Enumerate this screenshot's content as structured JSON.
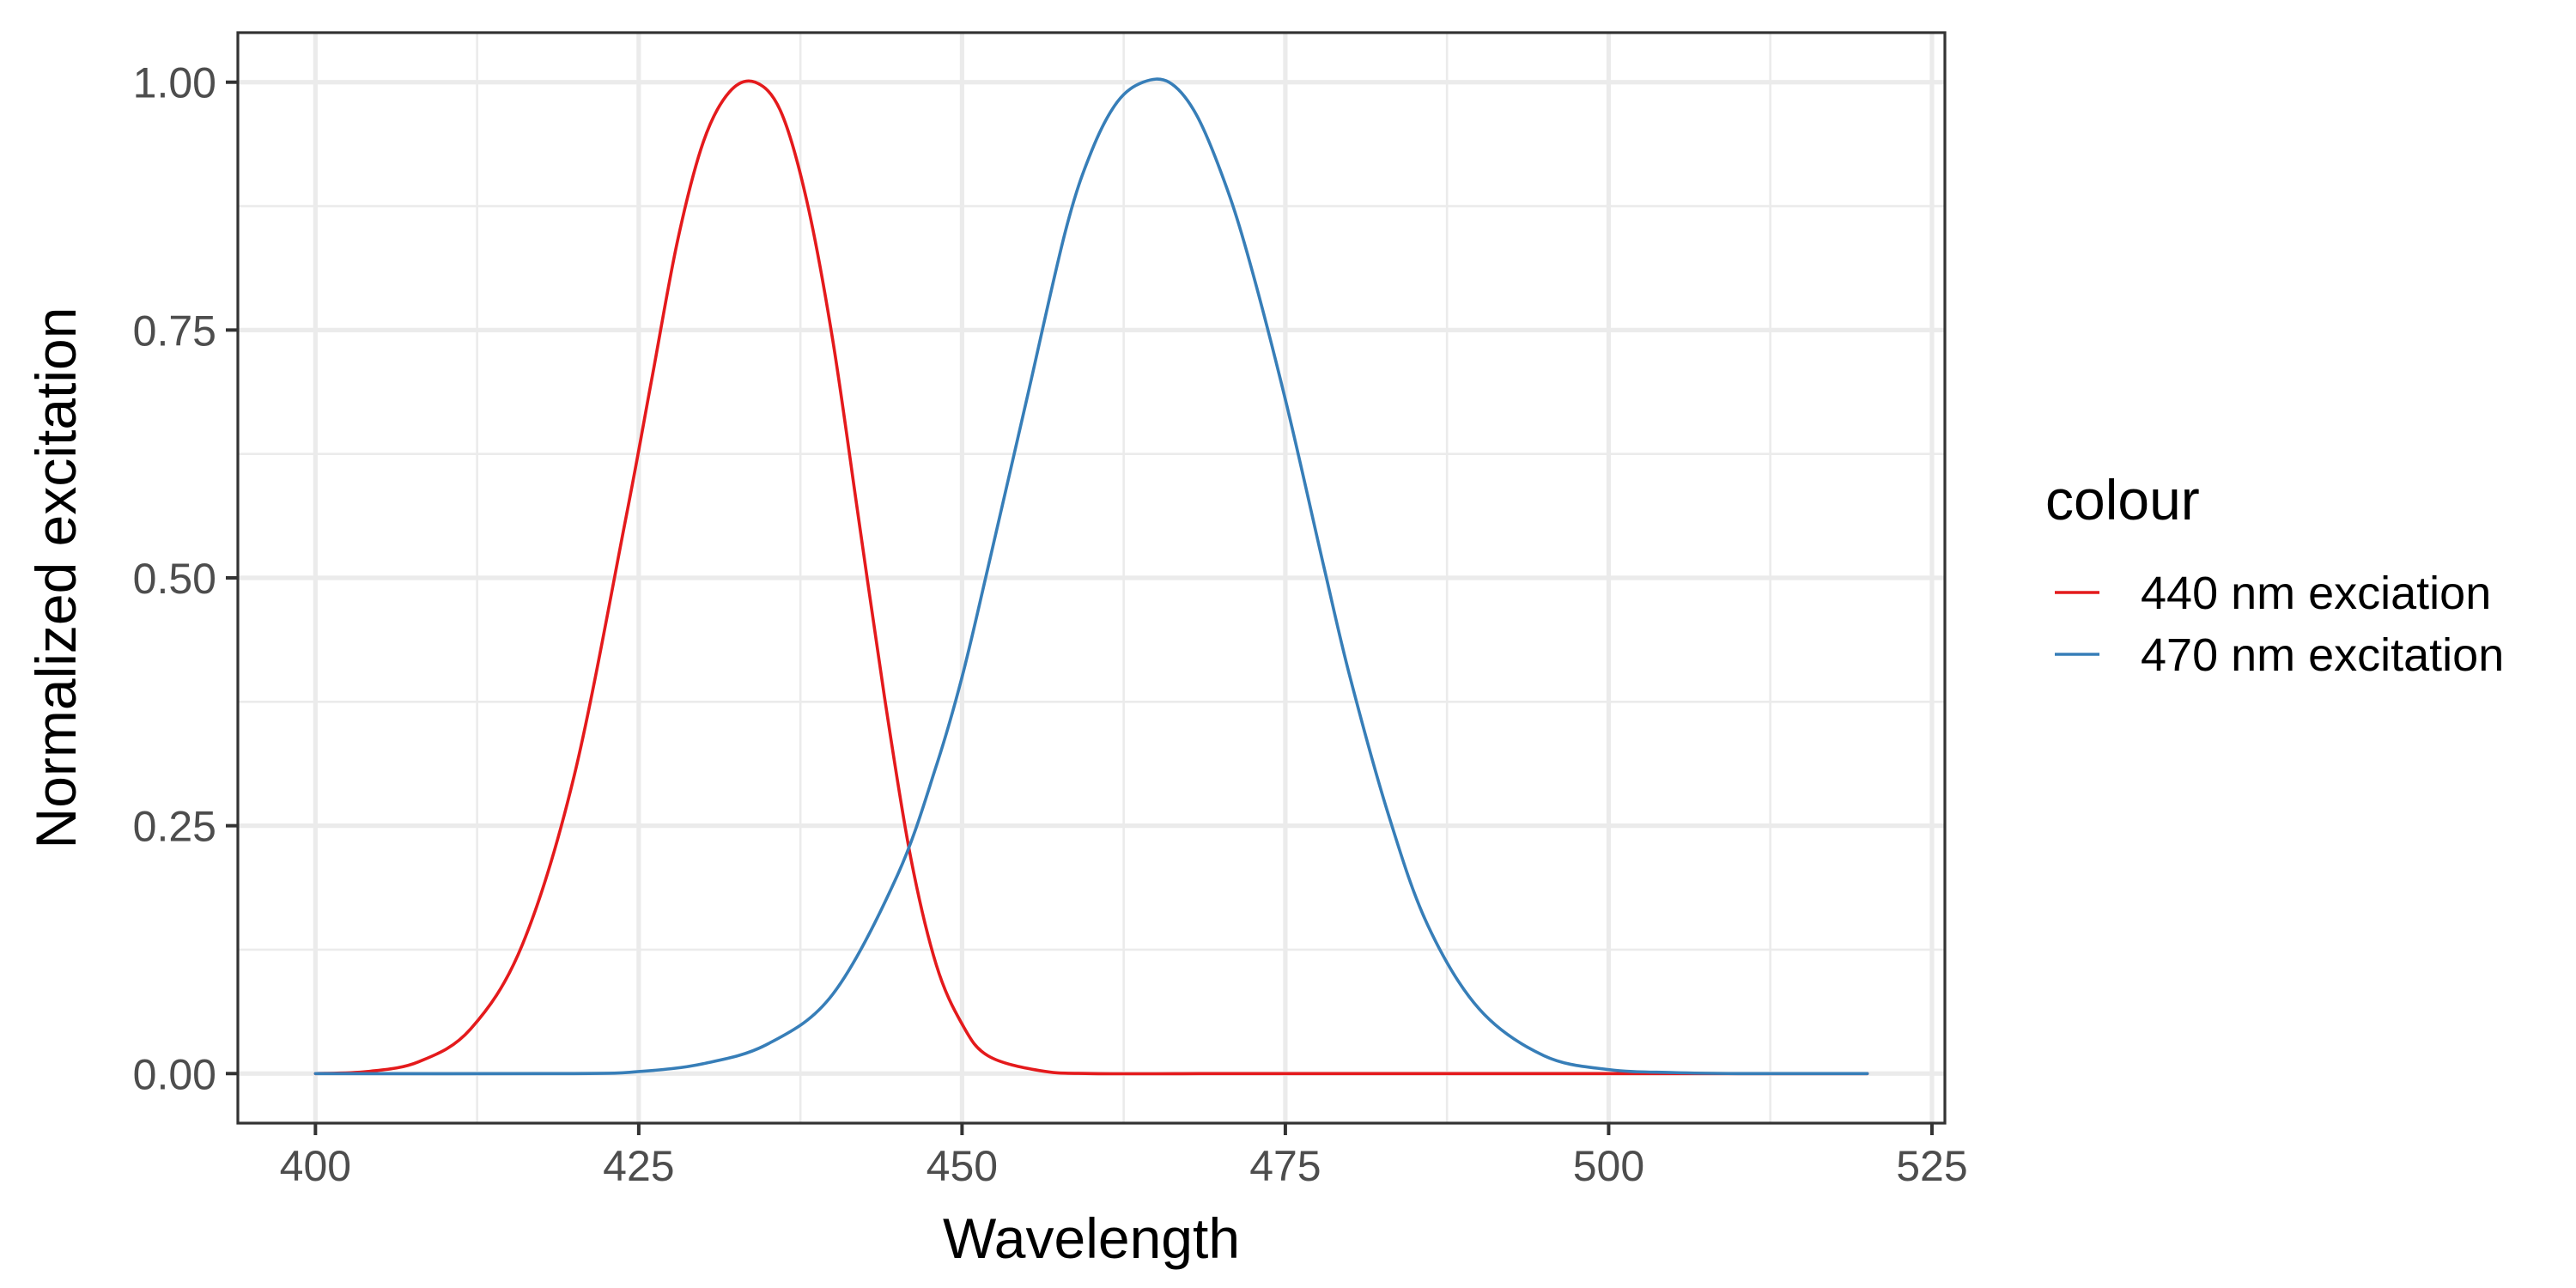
{
  "chart_data": {
    "type": "line",
    "title": "",
    "xlabel": "Wavelength",
    "ylabel": "Normalized excitation",
    "xlim": [
      394,
      526
    ],
    "ylim": [
      -0.05,
      1.05
    ],
    "x_ticks": [
      400,
      425,
      450,
      475,
      500,
      525
    ],
    "y_ticks": [
      0.0,
      0.25,
      0.5,
      0.75,
      1.0
    ],
    "x_tick_labels": [
      "400",
      "425",
      "450",
      "475",
      "500",
      "525"
    ],
    "y_tick_labels": [
      "0.00",
      "0.25",
      "0.50",
      "0.75",
      "1.00"
    ],
    "grid": true,
    "legend": {
      "title": "colour",
      "position": "right"
    },
    "series": [
      {
        "name": "440 nm exciation",
        "color": "#e41a1c",
        "x": [
          400,
          404,
          408,
          412,
          416,
          420,
          424,
          426,
          428,
          430,
          432,
          434,
          436,
          438,
          440,
          442,
          444,
          446,
          448,
          450,
          452,
          456,
          460,
          470,
          480,
          500,
          520
        ],
        "y": [
          0.0,
          0.002,
          0.012,
          0.045,
          0.13,
          0.3,
          0.56,
          0.7,
          0.84,
          0.94,
          0.99,
          1.0,
          0.97,
          0.88,
          0.74,
          0.56,
          0.38,
          0.22,
          0.11,
          0.05,
          0.018,
          0.003,
          0.0,
          0.0,
          0.0,
          0.0,
          0.0
        ]
      },
      {
        "name": "470 nm excitation",
        "color": "#377eb8",
        "x": [
          400,
          420,
          425,
          430,
          435,
          440,
          445,
          448,
          450,
          452,
          455,
          458,
          460,
          462,
          464,
          466,
          468,
          470,
          472,
          475,
          478,
          480,
          483,
          486,
          490,
          495,
          500,
          505,
          510,
          520
        ],
        "y": [
          0.0,
          0.0,
          0.002,
          0.01,
          0.03,
          0.08,
          0.2,
          0.31,
          0.4,
          0.51,
          0.68,
          0.85,
          0.93,
          0.98,
          1.0,
          1.0,
          0.97,
          0.91,
          0.83,
          0.68,
          0.51,
          0.4,
          0.26,
          0.15,
          0.065,
          0.018,
          0.004,
          0.001,
          0.0,
          0.0
        ]
      }
    ]
  }
}
